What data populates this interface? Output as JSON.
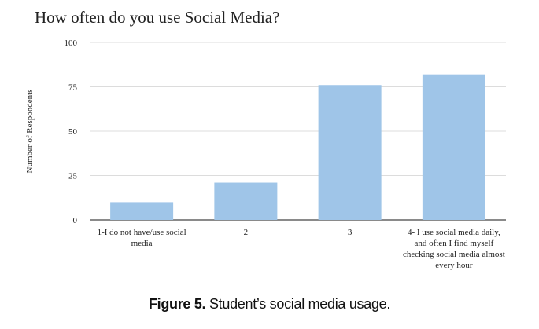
{
  "chart_data": {
    "type": "bar",
    "title": "How often do you use Social Media?",
    "ylabel": "Number of Respondents",
    "xlabel": "",
    "categories": [
      "1-I do not have/use social media",
      "2",
      "3",
      "4-  I use social media daily, and often I find myself checking social media almost every hour"
    ],
    "values": [
      10,
      21,
      76,
      82
    ],
    "ylim": [
      0,
      100
    ],
    "yticks": [
      0,
      25,
      50,
      75,
      100
    ],
    "bar_color": "#9fc5e8",
    "grid": true,
    "legend": "none"
  },
  "caption": {
    "label": "Figure 5.",
    "text": "Student’s social media usage."
  }
}
